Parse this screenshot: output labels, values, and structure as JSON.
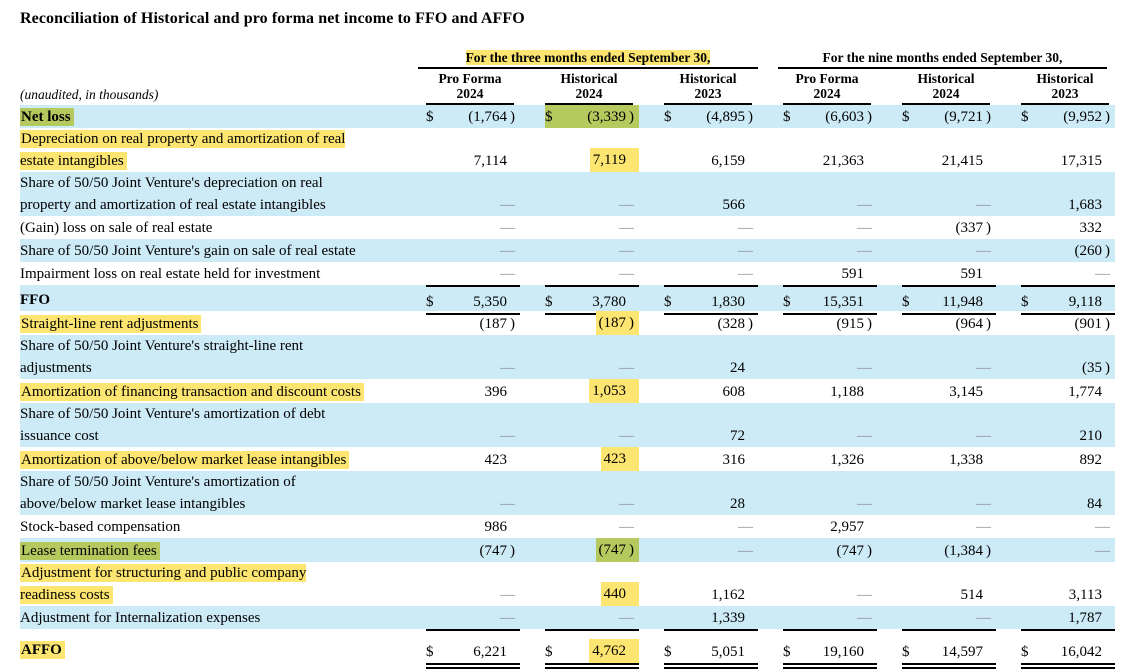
{
  "title": "Reconciliation of Historical and pro forma net income to FFO and AFFO",
  "table": {
    "unaudited_note": "(unaudited, in thousands)",
    "dollar_sign": "$",
    "colors": {
      "row_blue": "#cdeaf7",
      "highlight_yellow": "#fce570",
      "highlight_green": "#b6c95f"
    },
    "groups": [
      {
        "label": "For the three months ended September 30,",
        "highlight": "yellow"
      },
      {
        "label": "For the nine months ended September 30,",
        "highlight": null
      }
    ],
    "columns": [
      {
        "line1": "Pro Forma",
        "line2": "2024"
      },
      {
        "line1": "Historical",
        "line2": "2024"
      },
      {
        "line1": "Historical",
        "line2": "2023"
      },
      {
        "line1": "Pro Forma",
        "line2": "2024"
      },
      {
        "line1": "Historical",
        "line2": "2024"
      },
      {
        "line1": "Historical",
        "line2": "2023"
      }
    ],
    "rows": [
      {
        "label": "Net loss",
        "label_highlight": "green",
        "bold": true,
        "bg": "blue",
        "dollar": true,
        "rule": null,
        "values": [
          "(1,764)",
          "(3,339)",
          "(4,895)",
          "(6,603)",
          "(9,721)",
          "(9,952)"
        ],
        "vhl": [
          "",
          "green-full",
          "",
          "",
          "",
          ""
        ]
      },
      {
        "label": "Depreciation on real property and amortization of real\nestate intangibles",
        "label_highlight": "yellow",
        "bold": false,
        "bg": "white",
        "dollar": false,
        "rule": null,
        "values": [
          "7,114",
          "7,119",
          "6,159",
          "21,363",
          "21,415",
          "17,315"
        ],
        "vhl": [
          "",
          "yellow",
          "",
          "",
          "",
          ""
        ]
      },
      {
        "label": "Share of 50/50 Joint Venture's depreciation on real\nproperty and amortization of real estate intangibles",
        "label_highlight": null,
        "bold": false,
        "bg": "blue",
        "dollar": false,
        "rule": null,
        "values": [
          "—",
          "—",
          "566",
          "—",
          "—",
          "1,683"
        ],
        "vhl": [
          "",
          "",
          "",
          "",
          "",
          ""
        ]
      },
      {
        "label": "(Gain) loss on sale of real estate",
        "label_highlight": null,
        "bold": false,
        "bg": "white",
        "dollar": false,
        "rule": null,
        "values": [
          "—",
          "—",
          "—",
          "—",
          "(337)",
          "332"
        ],
        "vhl": [
          "",
          "",
          "",
          "",
          "",
          ""
        ]
      },
      {
        "label": "Share of 50/50 Joint Venture's gain on sale of real estate",
        "label_highlight": null,
        "bold": false,
        "bg": "blue",
        "dollar": false,
        "rule": null,
        "values": [
          "—",
          "—",
          "—",
          "—",
          "—",
          "(260)"
        ],
        "vhl": [
          "",
          "",
          "",
          "",
          "",
          ""
        ]
      },
      {
        "label": "Impairment loss on real estate held for investment",
        "label_highlight": null,
        "bold": false,
        "bg": "white",
        "dollar": false,
        "rule": null,
        "values": [
          "—",
          "—",
          "—",
          "591",
          "591",
          "—"
        ],
        "vhl": [
          "",
          "",
          "",
          "",
          "",
          ""
        ]
      },
      {
        "label": "FFO",
        "label_highlight": null,
        "bold": true,
        "bg": "blue",
        "dollar": true,
        "rule": "total",
        "values": [
          "5,350",
          "3,780",
          "1,830",
          "15,351",
          "11,948",
          "9,118"
        ],
        "vhl": [
          "",
          "",
          "",
          "",
          "",
          ""
        ]
      },
      {
        "label": "Straight-line rent adjustments",
        "label_highlight": "yellow",
        "bold": false,
        "bg": "white",
        "dollar": false,
        "rule": null,
        "values": [
          "(187)",
          "(187)",
          "(328)",
          "(915)",
          "(964)",
          "(901)"
        ],
        "vhl": [
          "",
          "yellow",
          "",
          "",
          "",
          ""
        ]
      },
      {
        "label": "Share of 50/50 Joint Venture's straight-line rent\nadjustments",
        "label_highlight": null,
        "bold": false,
        "bg": "blue",
        "dollar": false,
        "rule": null,
        "values": [
          "—",
          "—",
          "24",
          "—",
          "—",
          "(35)"
        ],
        "vhl": [
          "",
          "",
          "",
          "",
          "",
          ""
        ]
      },
      {
        "label": "Amortization of financing transaction and discount costs",
        "label_highlight": "yellow",
        "bold": false,
        "bg": "white",
        "dollar": false,
        "rule": null,
        "values": [
          "396",
          "1,053",
          "608",
          "1,188",
          "3,145",
          "1,774"
        ],
        "vhl": [
          "",
          "yellow",
          "",
          "",
          "",
          ""
        ]
      },
      {
        "label": "Share of 50/50 Joint Venture's amortization of debt\nissuance cost",
        "label_highlight": null,
        "bold": false,
        "bg": "blue",
        "dollar": false,
        "rule": null,
        "values": [
          "—",
          "—",
          "72",
          "—",
          "—",
          "210"
        ],
        "vhl": [
          "",
          "",
          "",
          "",
          "",
          ""
        ]
      },
      {
        "label": "Amortization of above/below market lease intangibles",
        "label_highlight": "yellow",
        "bold": false,
        "bg": "white",
        "dollar": false,
        "rule": null,
        "values": [
          "423",
          "423",
          "316",
          "1,326",
          "1,338",
          "892"
        ],
        "vhl": [
          "",
          "yellow",
          "",
          "",
          "",
          ""
        ]
      },
      {
        "label": "Share of 50/50 Joint Venture's amortization of\nabove/below market lease intangibles",
        "label_highlight": null,
        "bold": false,
        "bg": "blue",
        "dollar": false,
        "rule": null,
        "values": [
          "—",
          "—",
          "28",
          "—",
          "—",
          "84"
        ],
        "vhl": [
          "",
          "",
          "",
          "",
          "",
          ""
        ]
      },
      {
        "label": "Stock-based compensation",
        "label_highlight": null,
        "bold": false,
        "bg": "white",
        "dollar": false,
        "rule": null,
        "values": [
          "986",
          "—",
          "—",
          "2,957",
          "—",
          "—"
        ],
        "vhl": [
          "",
          "",
          "",
          "",
          "",
          ""
        ]
      },
      {
        "label": "Lease termination fees",
        "label_highlight": "green",
        "bold": false,
        "bg": "blue",
        "dollar": false,
        "rule": null,
        "values": [
          "(747)",
          "(747)",
          "—",
          "(747)",
          "(1,384)",
          "—"
        ],
        "vhl": [
          "",
          "green",
          "",
          "",
          "",
          ""
        ]
      },
      {
        "label": "Adjustment for structuring and public company\nreadiness costs",
        "label_highlight": "yellow",
        "bold": false,
        "bg": "white",
        "dollar": false,
        "rule": null,
        "values": [
          "—",
          "440",
          "1,162",
          "—",
          "514",
          "3,113"
        ],
        "vhl": [
          "",
          "yellow",
          "",
          "",
          "",
          ""
        ]
      },
      {
        "label": "Adjustment for Internalization expenses",
        "label_highlight": null,
        "bold": false,
        "bg": "blue",
        "dollar": false,
        "rule": null,
        "values": [
          "—",
          "—",
          "1,339",
          "—",
          "—",
          "1,787"
        ],
        "vhl": [
          "",
          "",
          "",
          "",
          "",
          ""
        ]
      },
      {
        "label": "AFFO",
        "label_highlight": "yellow",
        "bold": true,
        "bg": "white",
        "dollar": true,
        "rule": "grand",
        "values": [
          "6,221",
          "4,762",
          "5,051",
          "19,160",
          "14,597",
          "16,042"
        ],
        "vhl": [
          "",
          "yellow",
          "",
          "",
          "",
          ""
        ]
      }
    ]
  }
}
